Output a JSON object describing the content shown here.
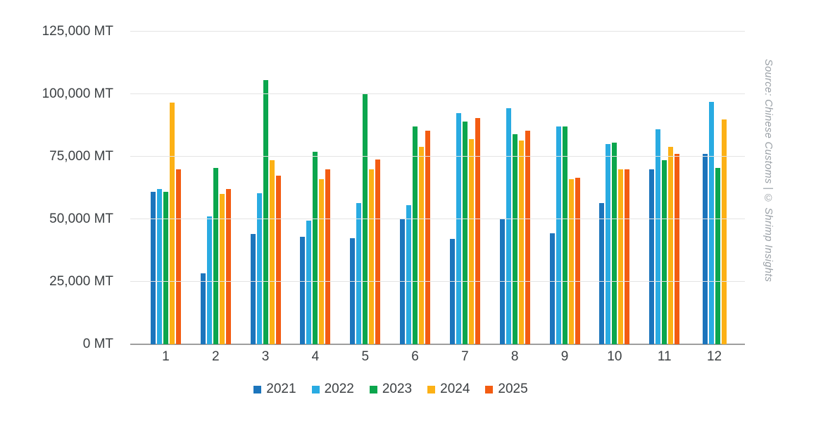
{
  "chart_data": {
    "type": "bar",
    "title": "",
    "xlabel": "",
    "ylabel": "",
    "unit": "MT",
    "ylim": [
      0,
      125000
    ],
    "grid": true,
    "legend_position": "bottom",
    "y_ticks": [
      "0 MT",
      "25,000 MT",
      "50,000 MT",
      "75,000 MT",
      "100,000 MT",
      "125,000 MT"
    ],
    "categories": [
      "1",
      "2",
      "3",
      "4",
      "5",
      "6",
      "7",
      "8",
      "9",
      "10",
      "11",
      "12"
    ],
    "series": [
      {
        "name": "2021",
        "color": "#1c75bc",
        "values": [
          61000,
          28500,
          44000,
          43000,
          42500,
          50000,
          42000,
          50000,
          44500,
          56500,
          70000,
          76000
        ]
      },
      {
        "name": "2022",
        "color": "#29abe2",
        "values": [
          62000,
          51000,
          60500,
          49500,
          56500,
          55500,
          92500,
          94500,
          87000,
          80000,
          86000,
          97000
        ]
      },
      {
        "name": "2023",
        "color": "#0ba64d",
        "values": [
          61000,
          70500,
          105500,
          77000,
          100000,
          87000,
          89000,
          84000,
          87000,
          80500,
          73500,
          70500
        ]
      },
      {
        "name": "2024",
        "color": "#fcb116",
        "values": [
          96500,
          60000,
          73500,
          66000,
          70000,
          79000,
          82000,
          81500,
          66000,
          70000,
          79000,
          90000
        ]
      },
      {
        "name": "2025",
        "color": "#f35c12",
        "values": [
          70000,
          62000,
          67500,
          70000,
          74000,
          85500,
          90500,
          85500,
          66500,
          70000,
          76000,
          null
        ]
      }
    ]
  },
  "source_text": "Source: Chinese Customs | © Shrimp Insights"
}
